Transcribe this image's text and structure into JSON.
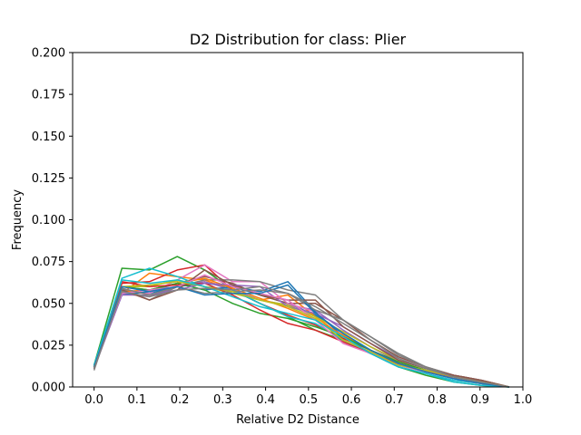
{
  "chart_data": {
    "type": "line",
    "title": "D2 Distribution for class: Plier",
    "xlabel": "Relative D2 Distance",
    "ylabel": "Frequency",
    "xlim": [
      -0.05,
      1.0
    ],
    "ylim": [
      0.0,
      0.2
    ],
    "xticks": [
      "0.0",
      "0.1",
      "0.2",
      "0.3",
      "0.4",
      "0.5",
      "0.6",
      "0.7",
      "0.8",
      "0.9",
      "1.0"
    ],
    "yticks": [
      "0.000",
      "0.025",
      "0.050",
      "0.075",
      "0.100",
      "0.125",
      "0.150",
      "0.175",
      "0.200"
    ],
    "grid": false,
    "legend": "none",
    "x": [
      0.0,
      0.065,
      0.129,
      0.194,
      0.258,
      0.323,
      0.387,
      0.452,
      0.516,
      0.581,
      0.645,
      0.71,
      0.774,
      0.839,
      0.903,
      0.968
    ],
    "series": [
      {
        "color": "#1f77b4",
        "values": [
          0.012,
          0.058,
          0.056,
          0.06,
          0.062,
          0.06,
          0.055,
          0.05,
          0.043,
          0.032,
          0.022,
          0.014,
          0.009,
          0.005,
          0.002,
          0.0
        ]
      },
      {
        "color": "#ff7f0e",
        "values": [
          0.011,
          0.056,
          0.068,
          0.066,
          0.064,
          0.058,
          0.052,
          0.055,
          0.042,
          0.03,
          0.02,
          0.013,
          0.009,
          0.006,
          0.003,
          0.0
        ]
      },
      {
        "color": "#2ca02c",
        "values": [
          0.013,
          0.071,
          0.07,
          0.078,
          0.07,
          0.058,
          0.05,
          0.042,
          0.034,
          0.028,
          0.02,
          0.012,
          0.007,
          0.003,
          0.001,
          0.0
        ]
      },
      {
        "color": "#d62728",
        "values": [
          0.012,
          0.062,
          0.063,
          0.07,
          0.073,
          0.058,
          0.05,
          0.043,
          0.037,
          0.029,
          0.022,
          0.014,
          0.01,
          0.006,
          0.003,
          0.0
        ]
      },
      {
        "color": "#9467bd",
        "values": [
          0.011,
          0.056,
          0.054,
          0.06,
          0.063,
          0.058,
          0.052,
          0.049,
          0.046,
          0.034,
          0.024,
          0.015,
          0.01,
          0.006,
          0.003,
          0.0
        ]
      },
      {
        "color": "#8c564b",
        "values": [
          0.012,
          0.06,
          0.058,
          0.062,
          0.066,
          0.062,
          0.055,
          0.05,
          0.05,
          0.04,
          0.028,
          0.018,
          0.012,
          0.007,
          0.004,
          0.0
        ]
      },
      {
        "color": "#e377c2",
        "values": [
          0.011,
          0.057,
          0.056,
          0.064,
          0.073,
          0.063,
          0.063,
          0.05,
          0.045,
          0.03,
          0.022,
          0.014,
          0.01,
          0.006,
          0.003,
          0.0
        ]
      },
      {
        "color": "#7f7f7f",
        "values": [
          0.011,
          0.059,
          0.052,
          0.06,
          0.064,
          0.064,
          0.063,
          0.058,
          0.055,
          0.04,
          0.03,
          0.02,
          0.012,
          0.007,
          0.004,
          0.0
        ]
      },
      {
        "color": "#bcbd22",
        "values": [
          0.012,
          0.06,
          0.06,
          0.064,
          0.06,
          0.056,
          0.052,
          0.049,
          0.042,
          0.033,
          0.024,
          0.016,
          0.011,
          0.007,
          0.004,
          0.0
        ]
      },
      {
        "color": "#17becf",
        "values": [
          0.012,
          0.065,
          0.071,
          0.066,
          0.06,
          0.058,
          0.05,
          0.042,
          0.038,
          0.028,
          0.02,
          0.012,
          0.008,
          0.004,
          0.002,
          0.0
        ]
      },
      {
        "color": "#1f77b4",
        "values": [
          0.012,
          0.055,
          0.057,
          0.062,
          0.058,
          0.06,
          0.057,
          0.063,
          0.045,
          0.03,
          0.022,
          0.014,
          0.009,
          0.005,
          0.002,
          0.0
        ]
      },
      {
        "color": "#ff7f0e",
        "values": [
          0.012,
          0.057,
          0.058,
          0.062,
          0.065,
          0.059,
          0.053,
          0.047,
          0.04,
          0.031,
          0.022,
          0.015,
          0.01,
          0.006,
          0.003,
          0.0
        ]
      },
      {
        "color": "#2ca02c",
        "values": [
          0.012,
          0.06,
          0.058,
          0.062,
          0.058,
          0.05,
          0.044,
          0.041,
          0.036,
          0.03,
          0.022,
          0.015,
          0.01,
          0.006,
          0.003,
          0.0
        ]
      },
      {
        "color": "#d62728",
        "values": [
          0.011,
          0.063,
          0.06,
          0.061,
          0.062,
          0.055,
          0.046,
          0.038,
          0.034,
          0.027,
          0.02,
          0.014,
          0.009,
          0.006,
          0.003,
          0.0
        ]
      },
      {
        "color": "#9467bd",
        "values": [
          0.011,
          0.055,
          0.055,
          0.058,
          0.062,
          0.061,
          0.06,
          0.048,
          0.044,
          0.036,
          0.026,
          0.017,
          0.011,
          0.007,
          0.004,
          0.0
        ]
      },
      {
        "color": "#8c564b",
        "values": [
          0.011,
          0.058,
          0.052,
          0.058,
          0.07,
          0.061,
          0.055,
          0.052,
          0.052,
          0.036,
          0.026,
          0.016,
          0.011,
          0.007,
          0.004,
          0.0
        ]
      },
      {
        "color": "#e377c2",
        "values": [
          0.012,
          0.056,
          0.058,
          0.06,
          0.067,
          0.06,
          0.056,
          0.052,
          0.04,
          0.026,
          0.02,
          0.013,
          0.009,
          0.005,
          0.002,
          0.0
        ]
      },
      {
        "color": "#7f7f7f",
        "values": [
          0.01,
          0.059,
          0.055,
          0.06,
          0.056,
          0.057,
          0.058,
          0.056,
          0.046,
          0.04,
          0.03,
          0.019,
          0.012,
          0.006,
          0.003,
          0.0
        ]
      },
      {
        "color": "#bcbd22",
        "values": [
          0.012,
          0.06,
          0.061,
          0.063,
          0.06,
          0.057,
          0.052,
          0.048,
          0.041,
          0.028,
          0.021,
          0.013,
          0.01,
          0.006,
          0.003,
          0.0
        ]
      },
      {
        "color": "#17becf",
        "values": [
          0.013,
          0.064,
          0.062,
          0.064,
          0.06,
          0.054,
          0.048,
          0.044,
          0.04,
          0.03,
          0.02,
          0.012,
          0.008,
          0.003,
          0.001,
          0.0
        ]
      },
      {
        "color": "#1f77b4",
        "values": [
          0.012,
          0.06,
          0.057,
          0.06,
          0.055,
          0.056,
          0.056,
          0.061,
          0.044,
          0.032,
          0.022,
          0.014,
          0.009,
          0.005,
          0.002,
          0.0
        ]
      },
      {
        "color": "#7f7f7f",
        "values": [
          0.011,
          0.057,
          0.054,
          0.058,
          0.059,
          0.058,
          0.06,
          0.056,
          0.048,
          0.038,
          0.028,
          0.017,
          0.011,
          0.006,
          0.003,
          0.0
        ]
      }
    ]
  }
}
